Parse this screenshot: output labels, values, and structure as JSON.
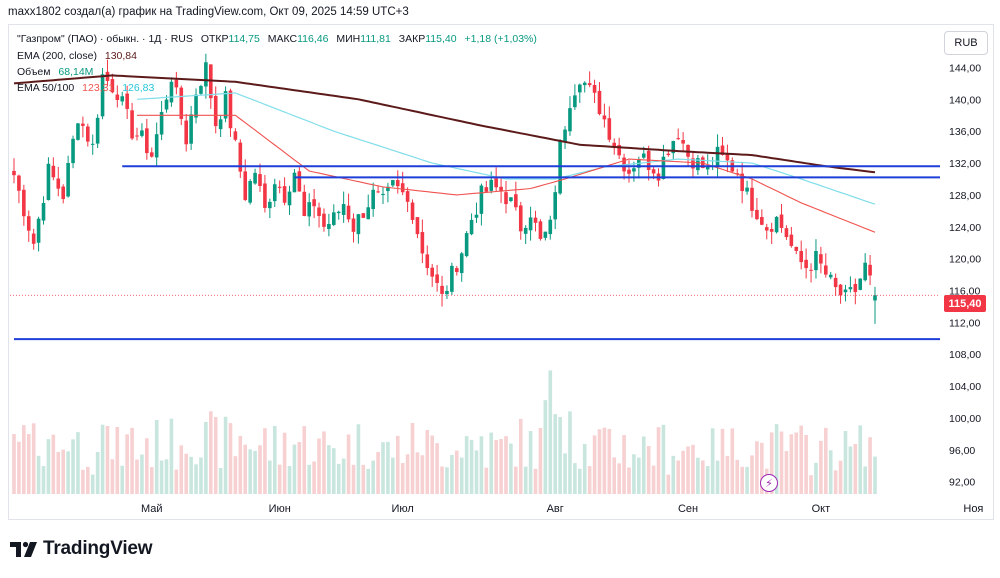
{
  "attribution": "maxx1802 создал(а) график на TradingView.com, Окт 09, 2025 14:59 UTC+3",
  "legend": {
    "symbol": "\"Газпром\" (ПАО) · обыкн. · 1Д · RUS",
    "open_label": "ОТКР",
    "open_value": "114,75",
    "high_label": "МАКС",
    "high_value": "116,46",
    "low_label": "МИН",
    "low_value": "111,81",
    "close_label": "ЗАКР",
    "close_value": "115,40",
    "change": "+1,18 (+1,03%)",
    "ema200_label": "EMA (200, close)",
    "ema200_value": "130,84",
    "volume_label": "Объем",
    "volume_value": "68,14M",
    "ema_pair_label": "EMA 50/100",
    "ema50_value": "123,31",
    "ema100_value": "126,83"
  },
  "currency": "RUB",
  "last_price_label": "115,40",
  "logo_text": "TradingView",
  "event_icon": "lightning-icon",
  "colors": {
    "up": "#089981",
    "down": "#f23645",
    "ema200": "#5d1a1a",
    "ema50": "#ef5350",
    "ema100": "#80deea",
    "levels": "#1e3fd8",
    "last_price": "#f23645",
    "volume_up": "#c8e6de",
    "volume_down": "#f7d0d2"
  },
  "chart_data": {
    "type": "candlestick",
    "title": "\"Газпром\" (ПАО) · обыкн. · 1Д · RUS",
    "x_tick_labels": [
      {
        "label": "Май",
        "bar": 28
      },
      {
        "label": "Июн",
        "bar": 54
      },
      {
        "label": "Июл",
        "bar": 79
      },
      {
        "label": "Авг",
        "bar": 110
      },
      {
        "label": "Сен",
        "bar": 137
      },
      {
        "label": "Окт",
        "bar": 164
      },
      {
        "label": "Ноя",
        "bar": 195
      }
    ],
    "y_tick_labels": [
      "144,00",
      "140,00",
      "136,00",
      "132,00",
      "128,00",
      "124,00",
      "120,00",
      "116,00",
      "112,00",
      "108,00",
      "104,00",
      "100,00",
      "96,00",
      "92,00"
    ],
    "y_range": [
      90.2,
      147.7
    ],
    "last_price": 115.4,
    "support_resistance_lines": [
      {
        "price": 131.6,
        "from_bar": 22,
        "to_bar": 197
      },
      {
        "price": 130.2,
        "from_bar": 57,
        "to_bar": 197
      },
      {
        "price": 109.9,
        "from_bar": 0,
        "to_bar": 214
      }
    ],
    "anchors": [
      [
        0,
        130.5
      ],
      [
        4,
        122
      ],
      [
        7,
        131
      ],
      [
        10,
        128
      ],
      [
        13,
        138
      ],
      [
        16,
        134
      ],
      [
        18,
        143
      ],
      [
        21,
        141
      ],
      [
        24,
        136
      ],
      [
        26,
        135
      ],
      [
        28,
        133
      ],
      [
        30,
        138
      ],
      [
        32,
        143
      ],
      [
        35,
        135
      ],
      [
        37,
        141
      ],
      [
        39,
        144
      ],
      [
        41,
        137
      ],
      [
        43,
        140
      ],
      [
        45,
        134
      ],
      [
        47,
        128
      ],
      [
        49,
        131
      ],
      [
        51,
        126
      ],
      [
        53,
        130
      ],
      [
        55,
        128
      ],
      [
        57,
        131
      ],
      [
        59,
        125
      ],
      [
        61,
        127
      ],
      [
        63,
        124
      ],
      [
        65,
        125
      ],
      [
        67,
        127
      ],
      [
        69,
        124
      ],
      [
        71,
        126
      ],
      [
        73,
        128
      ],
      [
        75,
        127
      ],
      [
        77,
        129
      ],
      [
        79,
        128
      ],
      [
        81,
        126
      ],
      [
        83,
        121
      ],
      [
        85,
        118
      ],
      [
        87,
        115
      ],
      [
        89,
        118
      ],
      [
        91,
        121
      ],
      [
        93,
        125
      ],
      [
        95,
        128
      ],
      [
        97,
        129
      ],
      [
        99,
        128.5
      ],
      [
        101,
        127
      ],
      [
        103,
        124
      ],
      [
        105,
        126
      ],
      [
        107,
        122
      ],
      [
        109,
        124
      ],
      [
        111,
        134
      ],
      [
        113,
        140
      ],
      [
        115,
        143
      ],
      [
        117,
        141
      ],
      [
        119,
        139
      ],
      [
        121,
        136
      ],
      [
        123,
        133
      ],
      [
        125,
        131
      ],
      [
        127,
        133
      ],
      [
        129,
        132
      ],
      [
        131,
        131
      ],
      [
        133,
        134
      ],
      [
        135,
        136
      ],
      [
        137,
        133
      ],
      [
        139,
        132
      ],
      [
        141,
        131
      ],
      [
        143,
        133
      ],
      [
        145,
        132
      ],
      [
        147,
        131
      ],
      [
        149,
        128
      ],
      [
        151,
        126
      ],
      [
        153,
        124
      ],
      [
        155,
        125
      ],
      [
        157,
        123
      ],
      [
        159,
        120
      ],
      [
        161,
        119
      ],
      [
        163,
        120
      ],
      [
        165,
        118
      ],
      [
        167,
        116
      ],
      [
        169,
        115
      ],
      [
        171,
        116
      ],
      [
        173,
        119
      ],
      [
        175,
        115.4
      ]
    ],
    "ema200_anchors": [
      [
        0,
        142
      ],
      [
        20,
        143
      ],
      [
        45,
        142.2
      ],
      [
        70,
        140
      ],
      [
        95,
        136.7
      ],
      [
        115,
        134.3
      ],
      [
        135,
        133.5
      ],
      [
        150,
        133
      ],
      [
        165,
        131.6
      ],
      [
        175,
        130.84
      ]
    ],
    "ema100_anchors": [
      [
        25,
        140
      ],
      [
        45,
        140.8
      ],
      [
        65,
        136
      ],
      [
        85,
        132
      ],
      [
        100,
        130
      ],
      [
        110,
        130
      ],
      [
        120,
        131.5
      ],
      [
        135,
        132.5
      ],
      [
        150,
        132
      ],
      [
        160,
        130
      ],
      [
        175,
        126.83
      ]
    ],
    "ema50_anchors": [
      [
        25,
        138
      ],
      [
        45,
        138
      ],
      [
        60,
        131
      ],
      [
        75,
        129
      ],
      [
        90,
        128
      ],
      [
        105,
        128.8
      ],
      [
        112,
        130
      ],
      [
        125,
        132.5
      ],
      [
        140,
        132
      ],
      [
        150,
        130
      ],
      [
        160,
        127
      ],
      [
        175,
        123.31
      ]
    ],
    "volume_note": "Volume histogram drawn at chart bottom; last bar 68,14M"
  }
}
